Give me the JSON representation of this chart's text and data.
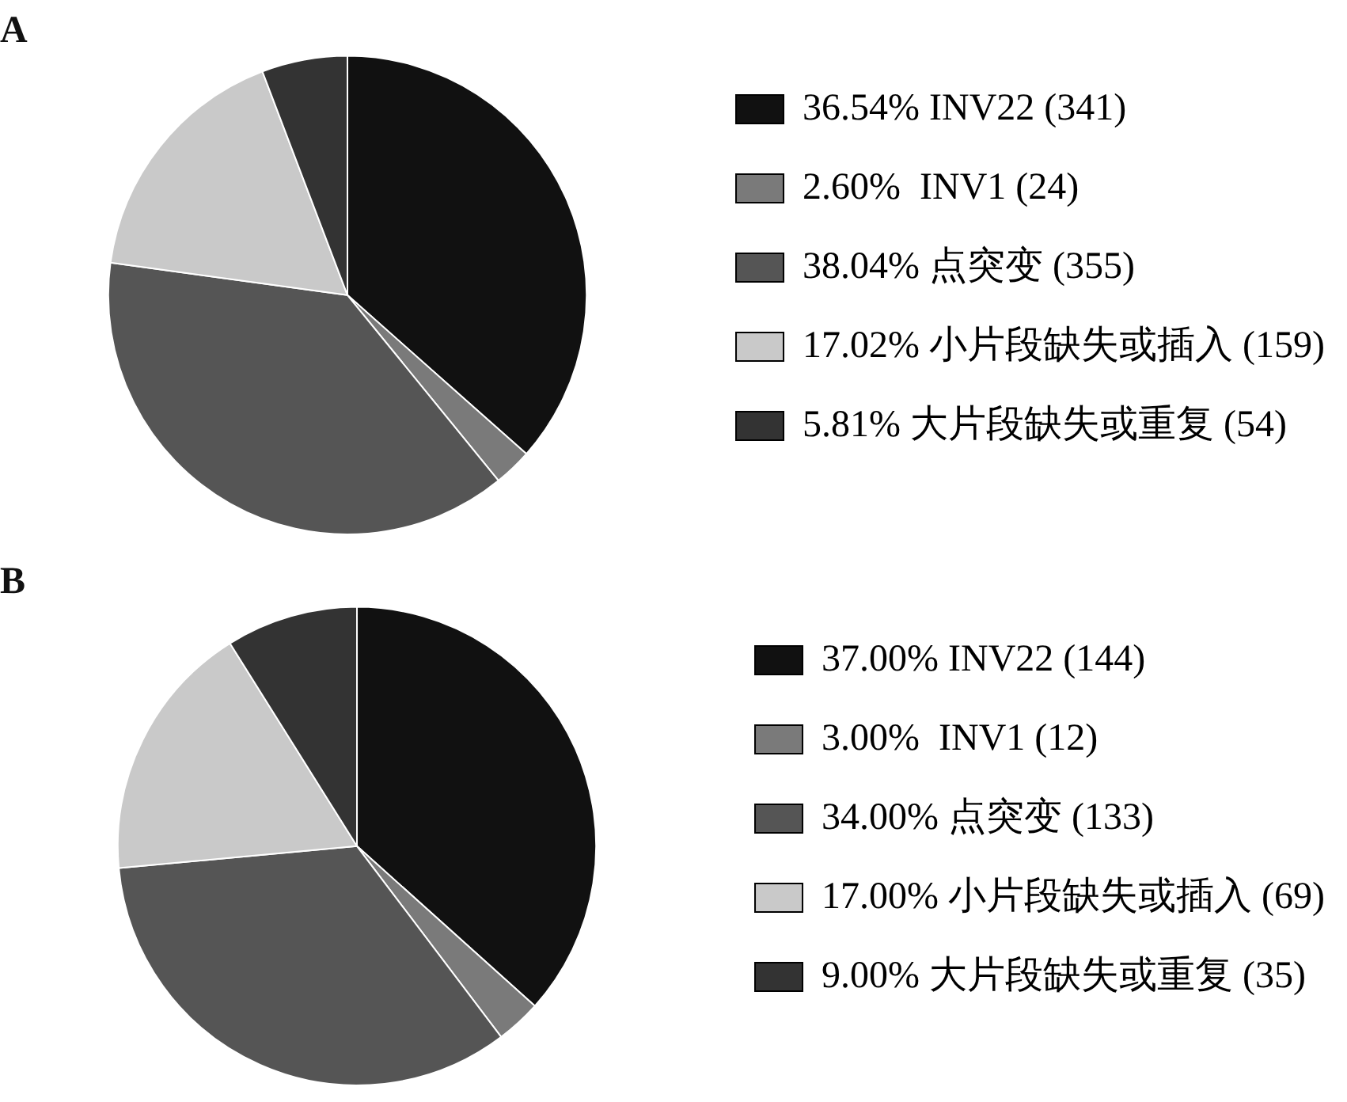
{
  "chart_data": [
    {
      "type": "pie",
      "title": "A",
      "legend": "right",
      "categories": [
        "36.54% INV22 (341)",
        "2.60%  INV1 (24)",
        "38.04% 点突变 (355)",
        "17.02% 小片段缺失或插入 (159)",
        "5.81% 大片段缺失或重复 (54)"
      ],
      "values": [
        341,
        24,
        355,
        159,
        54
      ],
      "colors": [
        "#111111",
        "#7a7a7a",
        "#555555",
        "#c9c9c9",
        "#333333"
      ]
    },
    {
      "type": "pie",
      "title": "B",
      "legend": "right",
      "categories": [
        "37.00% INV22 (144)",
        "3.00%  INV1 (12)",
        "34.00% 点突变 (133)",
        "17.00% 小片段缺失或插入 (69)",
        "9.00% 大片段缺失或重复 (35)"
      ],
      "values": [
        144,
        12,
        133,
        69,
        35
      ],
      "colors": [
        "#111111",
        "#7a7a7a",
        "#555555",
        "#c9c9c9",
        "#333333"
      ]
    }
  ]
}
